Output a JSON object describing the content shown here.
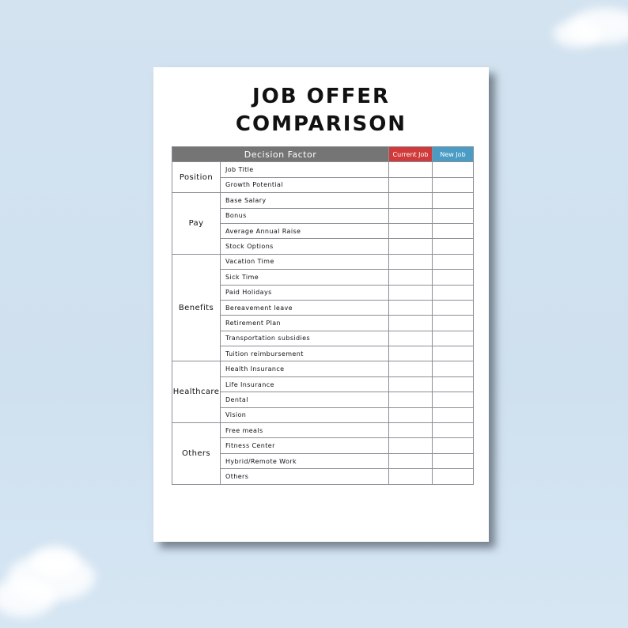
{
  "title_line1": "JOB OFFER",
  "title_line2": "COMPARISON",
  "headers": {
    "factor": "Decision Factor",
    "current": "Current Job",
    "new": "New Job"
  },
  "categories": [
    {
      "label": "Position",
      "items": [
        "Job Title",
        "Growth Potential"
      ]
    },
    {
      "label": "Pay",
      "items": [
        "Base Salary",
        "Bonus",
        "Average Annual Raise",
        "Stock Options"
      ]
    },
    {
      "label": "Benefits",
      "items": [
        "Vacation Time",
        "Sick Time",
        "Paid Holidays",
        "Bereavement leave",
        "Retirement Plan",
        "Transportation subsidies",
        "Tuition reimbursement"
      ]
    },
    {
      "label": "Healthcare",
      "items": [
        "Health Insurance",
        "Life Insurance",
        "Dental",
        "Vision"
      ]
    },
    {
      "label": "Others",
      "items": [
        "Free meals",
        "Fitness Center",
        "Hybrid/Remote Work",
        "Others"
      ]
    }
  ],
  "colors": {
    "header_gray": "#757575",
    "current_red": "#d13a3a",
    "new_blue": "#4a9cc4"
  }
}
